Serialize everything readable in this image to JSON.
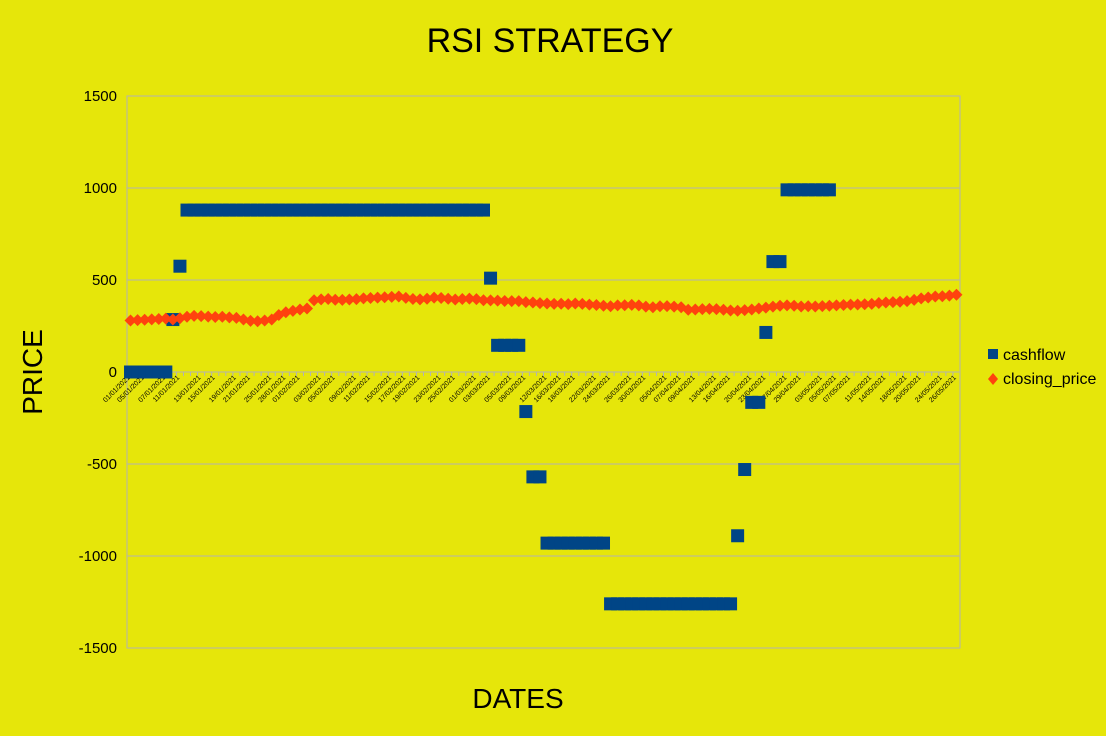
{
  "chart_data": {
    "type": "scatter",
    "title": "RSI STRATEGY",
    "xlabel": "DATES",
    "ylabel": "PRICE",
    "ylim": [
      -1500,
      1500
    ],
    "yticks": [
      1500,
      1000,
      500,
      0,
      -500,
      -1000,
      -1500
    ],
    "grid": "horizontal",
    "legend_position": "right",
    "x_tick_labels": [
      "01/01/2021",
      "05/01/2021",
      "07/01/2021",
      "11/01/2021",
      "13/01/2021",
      "15/01/2021",
      "19/01/2021",
      "21/01/2021",
      "25/01/2021",
      "28/01/2021",
      "01/02/2021",
      "03/02/2021",
      "05/02/2021",
      "09/02/2021",
      "11/02/2021",
      "15/02/2021",
      "17/02/2021",
      "19/02/2021",
      "23/02/2021",
      "25/02/2021",
      "01/03/2021",
      "03/03/2021",
      "05/03/2021",
      "09/03/2021",
      "12/03/2021",
      "16/03/2021",
      "18/03/2021",
      "22/03/2021",
      "24/03/2021",
      "26/03/2021",
      "30/03/2021",
      "05/04/2021",
      "07/04/2021",
      "09/04/2021",
      "13/04/2021",
      "16/04/2021",
      "20/04/2021",
      "23/04/2021",
      "27/04/2021",
      "29/04/2021",
      "03/05/2021",
      "05/05/2021",
      "07/05/2021",
      "11/05/2021",
      "14/05/2021",
      "18/05/2021",
      "20/05/2021",
      "24/05/2021",
      "26/05/2021"
    ],
    "series": [
      {
        "name": "cashflow",
        "color": "#004586",
        "marker": "square",
        "values": [
          0,
          0,
          0,
          0,
          0,
          0,
          285,
          575,
          880,
          880,
          880,
          880,
          880,
          880,
          880,
          880,
          880,
          880,
          880,
          880,
          880,
          880,
          880,
          880,
          880,
          880,
          880,
          880,
          880,
          880,
          880,
          880,
          880,
          880,
          880,
          880,
          880,
          880,
          880,
          880,
          880,
          880,
          880,
          880,
          880,
          880,
          880,
          880,
          880,
          880,
          880,
          510,
          145,
          145,
          145,
          145,
          -215,
          -570,
          -570,
          -930,
          -930,
          -930,
          -930,
          -930,
          -930,
          -930,
          -930,
          -930,
          -1260,
          -1260,
          -1260,
          -1260,
          -1260,
          -1260,
          -1260,
          -1260,
          -1260,
          -1260,
          -1260,
          -1260,
          -1260,
          -1260,
          -1260,
          -1260,
          -1260,
          -1260,
          -890,
          -530,
          -165,
          -165,
          215,
          600,
          600,
          990,
          990,
          990,
          990,
          990,
          990,
          990
        ]
      },
      {
        "name": "closing_price",
        "color": "#ff420e",
        "marker": "diamond",
        "values": [
          280,
          282,
          284,
          286,
          288,
          290,
          285,
          292,
          300,
          305,
          304,
          301,
          299,
          300,
          297,
          294,
          285,
          278,
          276,
          280,
          285,
          310,
          325,
          332,
          340,
          345,
          390,
          395,
          397,
          393,
          392,
          394,
          396,
          400,
          402,
          404,
          406,
          408,
          410,
          403,
          397,
          395,
          398,
          404,
          402,
          398,
          394,
          397,
          399,
          396,
          390,
          389,
          388,
          386,
          385,
          385,
          380,
          378,
          374,
          372,
          370,
          371,
          369,
          372,
          370,
          366,
          364,
          360,
          357,
          362,
          363,
          365,
          362,
          355,
          352,
          357,
          358,
          355,
          352,
          338,
          340,
          342,
          343,
          342,
          338,
          334,
          333,
          336,
          340,
          345,
          350,
          355,
          360,
          362,
          360,
          356,
          357,
          356,
          358,
          360,
          362,
          364,
          366,
          367,
          368,
          370,
          375,
          378,
          380,
          382,
          385,
          392,
          400,
          405,
          410,
          412,
          415,
          420
        ]
      }
    ]
  }
}
